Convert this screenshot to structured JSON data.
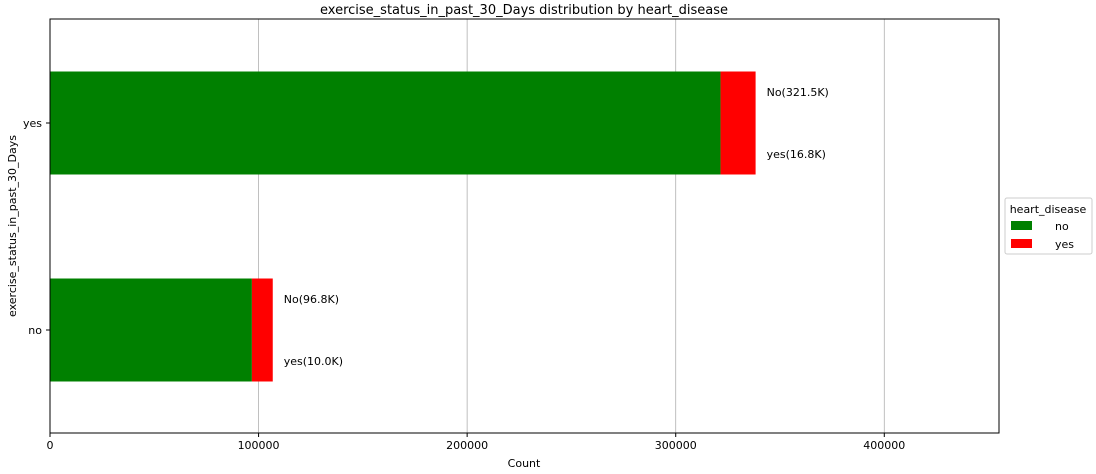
{
  "chart_data": {
    "type": "bar",
    "orientation": "horizontal",
    "stacked": true,
    "title": "exercise_status_in_past_30_Days distribution by heart_disease",
    "xlabel": "Count",
    "ylabel": "exercise_status_in_past_30_Days",
    "categories": [
      "yes",
      "no"
    ],
    "series": [
      {
        "name": "no",
        "color": "#008000",
        "values": [
          321500,
          96800
        ],
        "labels": [
          "No(321.5K)",
          "No(96.8K)"
        ]
      },
      {
        "name": "yes",
        "color": "#ff0000",
        "values": [
          16800,
          10000
        ],
        "labels": [
          "yes(16.8K)",
          "yes(10.0K)"
        ]
      }
    ],
    "xlim": [
      0,
      455000
    ],
    "xticks": [
      0,
      100000,
      200000,
      300000,
      400000
    ],
    "xtick_labels": [
      "0",
      "100000",
      "200000",
      "300000",
      "400000"
    ],
    "grid": "x",
    "legend": {
      "title": "heart_disease",
      "placement": "right",
      "entries": [
        "no",
        "yes"
      ]
    }
  }
}
